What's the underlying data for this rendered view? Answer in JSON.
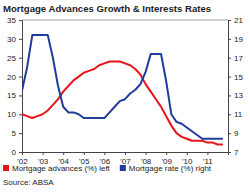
{
  "chart_data": {
    "type": "line",
    "title": "Mortgage Advances Growth & Interests Rates",
    "source": "Source: ABSA",
    "x": [
      2002,
      2002.25,
      2002.5,
      2002.75,
      2003,
      2003.25,
      2003.5,
      2003.75,
      2004,
      2004.25,
      2004.5,
      2004.75,
      2005,
      2005.25,
      2005.5,
      2005.75,
      2006,
      2006.25,
      2006.5,
      2006.75,
      2007,
      2007.25,
      2007.5,
      2007.75,
      2008,
      2008.25,
      2008.5,
      2008.75,
      2009,
      2009.25,
      2009.5,
      2009.75,
      2010,
      2010.25,
      2010.5,
      2010.75,
      2011,
      2011.25,
      2011.5,
      2011.75
    ],
    "series": [
      {
        "name": "Mortgage advances (%) left",
        "color": "#e8141c",
        "axis": "y",
        "values": [
          10,
          9.5,
          9,
          9.5,
          10,
          11,
          12.5,
          14,
          16,
          17.5,
          19,
          20,
          21,
          21.5,
          22,
          23,
          23.5,
          24,
          24,
          24,
          23.5,
          23,
          22,
          20.5,
          18,
          16,
          14,
          12,
          9.5,
          7,
          5,
          4,
          3.5,
          3,
          3,
          3,
          2.5,
          2.5,
          2,
          2
        ]
      },
      {
        "name": "Mortgage rate (%) right",
        "color": "#1f3c9b",
        "axis": "y2",
        "values": [
          13.5,
          16,
          19.4,
          19.4,
          19.4,
          19.4,
          17,
          14,
          11.8,
          11.2,
          11.2,
          11,
          10.6,
          10.6,
          10.6,
          10.6,
          10.6,
          11.2,
          11.8,
          12.4,
          12.6,
          13.2,
          13.6,
          14.2,
          15.5,
          17.4,
          17.4,
          17.4,
          14.5,
          11,
          10.2,
          10,
          9.6,
          9.2,
          8.8,
          8.4,
          8.4,
          8.4,
          8.4,
          8.4
        ]
      }
    ],
    "xlim": [
      2002,
      2012
    ],
    "xticks": [
      {
        "value": 2002,
        "label": "'02"
      },
      {
        "value": 2003,
        "label": "'03"
      },
      {
        "value": 2004,
        "label": "'04"
      },
      {
        "value": 2005,
        "label": "'05"
      },
      {
        "value": 2006,
        "label": "'06"
      },
      {
        "value": 2007,
        "label": "'07"
      },
      {
        "value": 2008,
        "label": "'08"
      },
      {
        "value": 2009,
        "label": "'09"
      },
      {
        "value": 2010,
        "label": "'10"
      },
      {
        "value": 2011,
        "label": "'11"
      }
    ],
    "ylim": [
      0,
      35
    ],
    "yticks": [
      0,
      5,
      10,
      15,
      20,
      25,
      30,
      35
    ],
    "y2lim": [
      7,
      21
    ],
    "y2ticks": [
      7,
      9,
      11,
      13,
      15,
      17,
      19,
      21
    ],
    "grid": false,
    "legend": "bottom"
  }
}
